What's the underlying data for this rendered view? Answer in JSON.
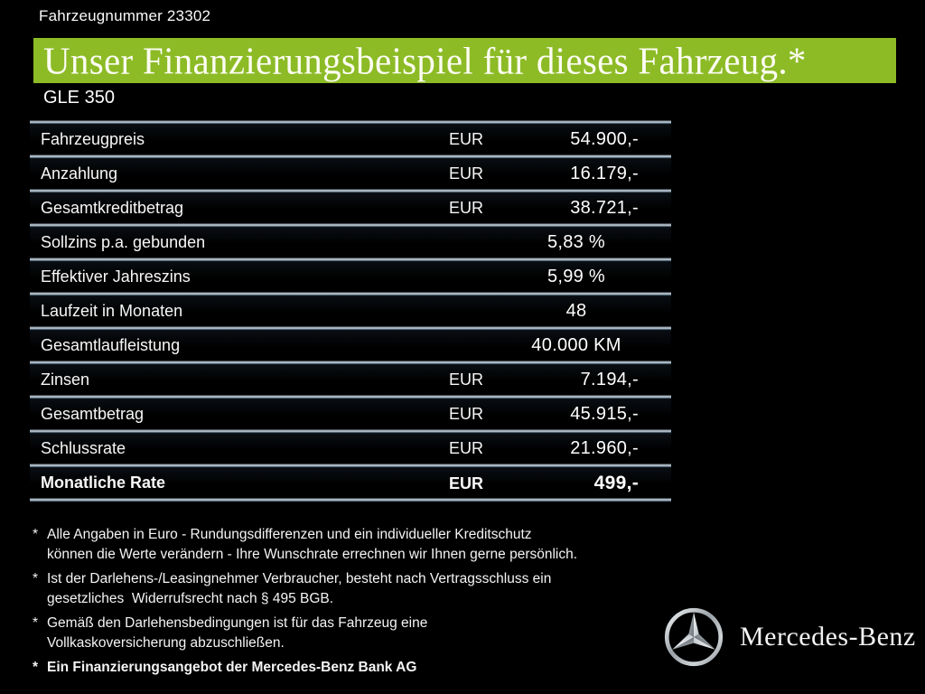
{
  "header": {
    "vehicle_number": "Fahrzeugnummer 23302",
    "title": "Unser Finanzierungsbeispiel für dieses Fahrzeug.*",
    "model": "GLE 350"
  },
  "table": {
    "rows": [
      {
        "label": "Fahrzeugpreis",
        "currency": "EUR",
        "value": "54.900,-",
        "bold": false
      },
      {
        "label": "Anzahlung",
        "currency": "EUR",
        "value": "16.179,-",
        "bold": false
      },
      {
        "label": "Gesamtkreditbetrag",
        "currency": "EUR",
        "value": "38.721,-",
        "bold": false
      },
      {
        "label": "Sollzins p.a. gebunden",
        "currency": "",
        "value": "5,83 %",
        "bold": false
      },
      {
        "label": "Effektiver Jahreszins",
        "currency": "",
        "value": "5,99 %",
        "bold": false
      },
      {
        "label": "Laufzeit in Monaten",
        "currency": "",
        "value": "48",
        "bold": false
      },
      {
        "label": "Gesamtlaufleistung",
        "currency": "",
        "value": "40.000 KM",
        "bold": false
      },
      {
        "label": "Zinsen",
        "currency": "EUR",
        "value": "7.194,-",
        "bold": false
      },
      {
        "label": "Gesamtbetrag",
        "currency": "EUR",
        "value": "45.915,-",
        "bold": false
      },
      {
        "label": "Schlussrate",
        "currency": "EUR",
        "value": "21.960,-",
        "bold": false
      },
      {
        "label": "Monatliche Rate",
        "currency": "EUR",
        "value": "499,-",
        "bold": true
      }
    ]
  },
  "footnotes": [
    {
      "marker": "*",
      "bold": false,
      "lines": [
        "Alle Angaben in Euro - Rundungsdifferenzen und ein individueller Kreditschutz",
        "können die Werte verändern - Ihre Wunschrate errechnen wir Ihnen gerne persönlich."
      ]
    },
    {
      "marker": "*",
      "bold": false,
      "lines": [
        "Ist der Darlehens-/Leasingnehmer Verbraucher, besteht nach Vertragsschluss ein",
        "gesetzliches  Widerrufsrecht nach § 495 BGB."
      ]
    },
    {
      "marker": "*",
      "bold": false,
      "lines": [
        "Gemäß den Darlehensbedingungen ist für das Fahrzeug eine",
        "Vollkaskoversicherung abzuschließen."
      ]
    },
    {
      "marker": "*",
      "bold": true,
      "lines": [
        "Ein Finanzierungsangebot der Mercedes-Benz Bank AG"
      ]
    }
  ],
  "brand": {
    "logo": "mercedes-star-icon",
    "wordmark": "Mercedes-Benz"
  },
  "colors": {
    "background": "#000000",
    "accent_green": "#8CBB26",
    "separator_light": "#CDD7E0",
    "separator_shadow": "#17232F",
    "text": "#FFFFFF"
  }
}
